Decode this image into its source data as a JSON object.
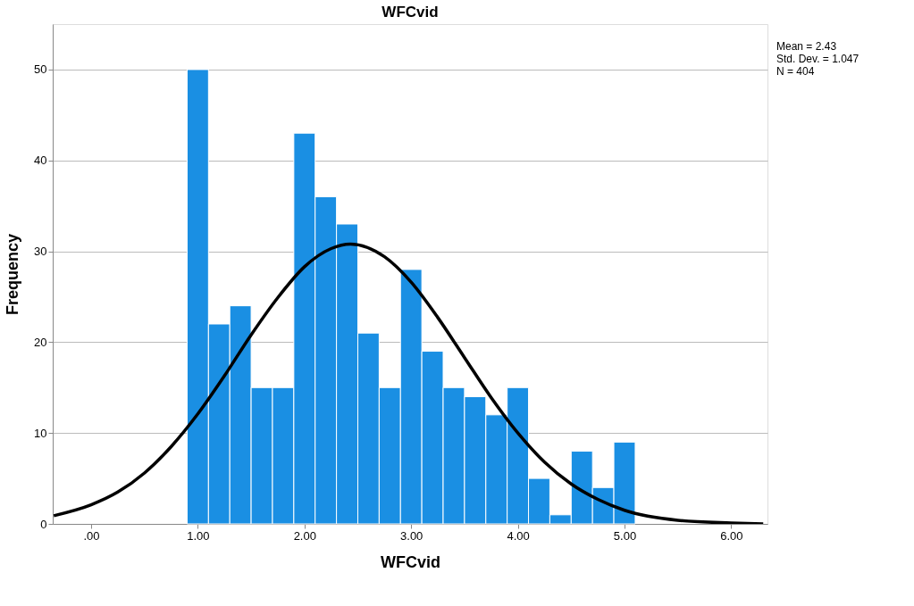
{
  "chart_data": {
    "type": "histogram",
    "title": "WFCvid",
    "xlabel": "WFCvid",
    "ylabel": "Frequency",
    "bins": [
      0.9,
      1.1,
      1.3,
      1.5,
      1.7,
      1.9,
      2.1,
      2.3,
      2.5,
      2.7,
      2.9,
      3.1,
      3.3,
      3.5,
      3.7,
      3.9,
      4.1,
      4.3,
      4.5,
      4.7,
      4.9,
      5.1
    ],
    "values": [
      50,
      22,
      24,
      15,
      15,
      43,
      36,
      33,
      21,
      15,
      28,
      19,
      15,
      14,
      12,
      15,
      5,
      1,
      8,
      4,
      9
    ],
    "color": "#1a8fe3",
    "series": [
      {
        "type": "line",
        "color": "#000000",
        "x": [
          -0.35,
          0,
          0.25,
          0.5,
          0.75,
          1,
          1.25,
          1.5,
          1.75,
          2,
          2.25,
          2.43,
          2.75,
          3,
          3.25,
          3.5,
          3.75,
          4,
          4.25,
          4.5,
          4.75,
          5,
          5.5,
          6,
          6.3
        ],
        "values": [
          0.9,
          2.1,
          3.5,
          5.6,
          8.5,
          12.1,
          16.3,
          20.8,
          24.9,
          28.3,
          30.3,
          30.8,
          29.4,
          26.6,
          22.7,
          18.3,
          13.9,
          10.0,
          6.8,
          4.4,
          2.7,
          1.5,
          0.4,
          0.1,
          0.0
        ]
      }
    ],
    "xlim": [
      -0.36,
      6.34
    ],
    "xticks": [
      {
        "value": 0,
        "label": ".00"
      },
      {
        "value": 1,
        "label": "1.00"
      },
      {
        "value": 2,
        "label": "2.00"
      },
      {
        "value": 3,
        "label": "3.00"
      },
      {
        "value": 4,
        "label": "4.00"
      },
      {
        "value": 5,
        "label": "5.00"
      },
      {
        "value": 6,
        "label": "6.00"
      }
    ],
    "ylim": [
      0,
      55
    ],
    "yticks": [
      0,
      10,
      20,
      30,
      40,
      50
    ],
    "grid": "y",
    "annotations": [
      "Mean = 2.43",
      "Std. Dev. = 1.047",
      "N = 404"
    ]
  }
}
